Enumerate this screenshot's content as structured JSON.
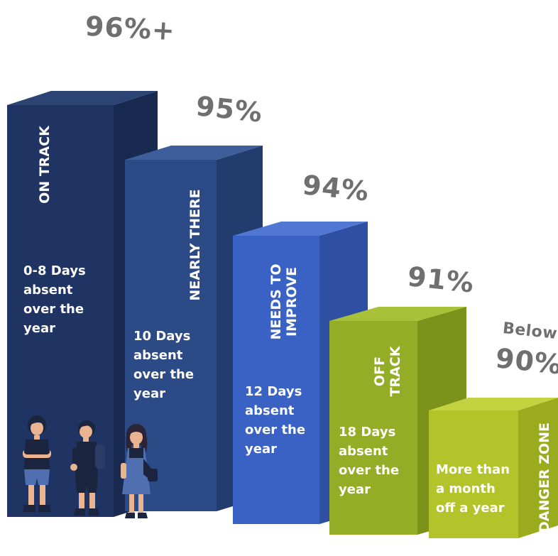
{
  "bars": [
    {
      "id": "on-track",
      "percent": "96%+",
      "status": "ON TRACK",
      "description": "0-8 Days\nabsent\nover the\nyear",
      "front_color": "#1f3462",
      "side_color": "#182a4f",
      "top_color": "#2b4473"
    },
    {
      "id": "nearly-there",
      "percent": "95%",
      "status": "NEARLY THERE",
      "description": "10 Days\nabsent\nover the\nyear",
      "front_color": "#2c4a86",
      "side_color": "#223c6e",
      "top_color": "#3d5d9b"
    },
    {
      "id": "needs-to-improve",
      "percent": "94%",
      "status": "NEEDS TO\nIMPROVE",
      "description": "12 Days\nabsent\nover the\nyear",
      "front_color": "#3a62c4",
      "side_color": "#2e4fa2",
      "top_color": "#5077d3"
    },
    {
      "id": "off-track",
      "percent": "91%",
      "status": "OFF\nTRACK",
      "description": "18 Days\nabsent\nover the\nyear",
      "front_color": "#93ad26",
      "side_color": "#7c921b",
      "top_color": "#a8c138"
    },
    {
      "id": "danger-zone",
      "percent_prefix": "Below",
      "percent": "90%",
      "status": "DANGER ZONE",
      "description": "More than\na month\noff a year",
      "front_color": "#b2c42a",
      "side_color": "#9aab1e",
      "top_color": "#c3d340"
    }
  ],
  "icons": [
    "student-boy-arms-crossed-icon",
    "student-boy-backpack-icon",
    "student-girl-icon"
  ]
}
